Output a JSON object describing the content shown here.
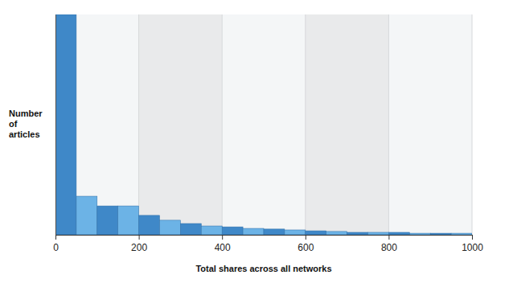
{
  "chart_data": {
    "type": "histogram",
    "x_label": "Total shares across all networks",
    "y_label": "Number of articles",
    "bins": [
      0,
      50,
      100,
      150,
      200,
      250,
      300,
      350,
      400,
      450,
      500,
      550,
      600,
      650,
      700,
      750,
      800,
      850,
      900,
      950,
      1000
    ],
    "values": [
      100,
      17.5,
      13.1,
      13.1,
      8.8,
      6.6,
      5.1,
      4.0,
      3.6,
      2.9,
      2.6,
      2.2,
      1.8,
      1.5,
      1.1,
      1.1,
      1.1,
      0.7,
      0.7,
      0.7
    ],
    "colors": [
      "#3f88c8",
      "#6cb3e6",
      "#3f88c8",
      "#6cb3e6",
      "#3f88c8",
      "#6cb3e6",
      "#3f88c8",
      "#6cb3e6",
      "#3f88c8",
      "#6cb3e6",
      "#3f88c8",
      "#6cb3e6",
      "#3f88c8",
      "#6cb3e6",
      "#3f88c8",
      "#6cb3e6",
      "#3f88c8",
      "#6cb3e6",
      "#3f88c8",
      "#6cb3e6"
    ],
    "xlim": [
      0,
      1000
    ],
    "xticks": [
      0,
      200,
      400,
      600,
      800,
      1000
    ],
    "ylim": [
      0,
      100
    ],
    "yticks": [],
    "tick_labels": "x",
    "grid": true
  }
}
